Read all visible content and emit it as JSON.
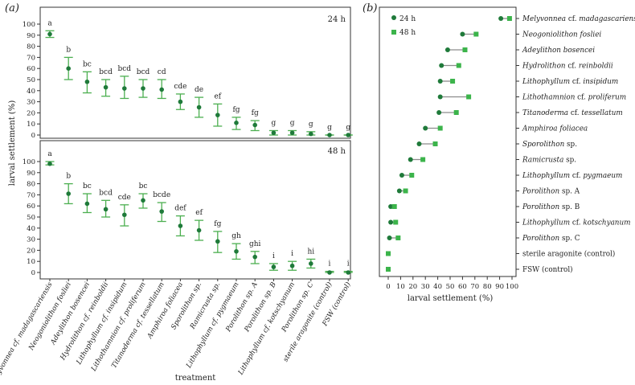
{
  "colors": {
    "dark": "#1f7a3a",
    "light": "#3cb44b",
    "errbar": "#4caf50",
    "axis": "#333333",
    "connector": "#8c8c8c"
  },
  "panel_a": {
    "label": "(a)",
    "ylabel": "larval settlement (%)",
    "xlabel": "treatment",
    "yticks": [
      0,
      10,
      20,
      30,
      40,
      50,
      60,
      70,
      80,
      90,
      100
    ],
    "categories": [
      "Melyvonnea cf. madagascariensis",
      "Neogoniolithon fosliei",
      "Adeylithon bosencei",
      "Hydrolithon cf. reinboldii",
      "Lithophyllum cf. insipidum",
      "Lithothamnion cf. proliferum",
      "Titanoderma cf. tessellatum",
      "Amphiroa foliacea",
      "Sporolithon sp.",
      "Ramicrusta sp.",
      "Lithophyllum cf. pygmaeum",
      "Porolithon sp. A",
      "Porolithon sp. B",
      "Lithophyllum cf. kotschyanum",
      "Porolithon sp. C",
      "sterile aragonite (control)",
      "FSW (control)"
    ]
  },
  "panel_b": {
    "label": "(b)",
    "xlabel": "larval settlement (%)",
    "xticks": [
      0,
      10,
      20,
      30,
      40,
      50,
      60,
      70,
      80,
      90,
      100
    ],
    "legend": [
      {
        "label": "24 h",
        "shape": "circle",
        "color": "#1f7a3a"
      },
      {
        "label": "48 h",
        "shape": "square",
        "color": "#3cb44b"
      }
    ]
  },
  "chart_data": [
    {
      "type": "scatter",
      "panel": "(a) top",
      "title": "24 h",
      "xlabel": "treatment",
      "ylabel": "larval settlement (%)",
      "ylim": [
        -5,
        105
      ],
      "series": [
        {
          "name": "24 h",
          "means": [
            91,
            60,
            48,
            43,
            42,
            42,
            41,
            30,
            25,
            18,
            11,
            9,
            2,
            2,
            1,
            0,
            0
          ],
          "err_low": [
            88,
            50,
            38,
            35,
            33,
            34,
            33,
            23,
            16,
            8,
            5,
            4,
            0,
            0,
            0,
            0,
            0
          ],
          "err_high": [
            94,
            70,
            57,
            50,
            53,
            50,
            50,
            37,
            34,
            28,
            16,
            13,
            4,
            4,
            3,
            0,
            0
          ],
          "letters": [
            "a",
            "b",
            "bc",
            "bcd",
            "bcd",
            "bcd",
            "cd",
            "cde",
            "de",
            "ef",
            "fg",
            "fg",
            "g",
            "g",
            "g",
            "g",
            "g"
          ]
        }
      ]
    },
    {
      "type": "scatter",
      "panel": "(a) bottom",
      "title": "48 h",
      "xlabel": "treatment",
      "ylabel": "larval settlement (%)",
      "ylim": [
        -5,
        105
      ],
      "series": [
        {
          "name": "48 h",
          "means": [
            98,
            71,
            62,
            57,
            52,
            65,
            55,
            42,
            38,
            28,
            19,
            14,
            5,
            6,
            8,
            0,
            0
          ],
          "err_low": [
            97,
            62,
            54,
            50,
            42,
            58,
            46,
            33,
            29,
            18,
            12,
            8,
            2,
            2,
            4,
            0,
            0
          ],
          "err_high": [
            100,
            80,
            71,
            65,
            61,
            71,
            63,
            51,
            47,
            37,
            26,
            19,
            8,
            10,
            12,
            1,
            1
          ],
          "letters": [
            "a",
            "b",
            "bc",
            "bcd",
            "cde",
            "bc",
            "bcde",
            "def",
            "ef",
            "fg",
            "gh",
            "ghi",
            "i",
            "i",
            "hi",
            "i",
            "i"
          ]
        }
      ]
    },
    {
      "type": "scatter",
      "panel": "(b)",
      "xlabel": "larval settlement (%)",
      "xlim": [
        -3,
        103
      ],
      "categories": [
        "Melyvonnea cf. madagascariensis",
        "Neogoniolithon fosliei",
        "Adeylithon bosencei",
        "Hydrolithon cf. reinboldii",
        "Lithophyllum cf. insipidum",
        "Lithothamnion cf. proliferum",
        "Titanoderma cf. tessellatum",
        "Amphiroa foliacea",
        "Sporolithon sp.",
        "Ramicrusta sp.",
        "Lithophyllum cf. pygmaeum",
        "Porolithon sp. A",
        "Porolithon sp. B",
        "Lithophyllum cf. kotschyanum",
        "Porolithon sp. C",
        "sterile aragonite (control)",
        "FSW (control)"
      ],
      "series": [
        {
          "name": "24 h",
          "values": [
            91,
            60,
            48,
            43,
            42,
            42,
            41,
            30,
            25,
            18,
            11,
            9,
            2,
            2,
            1,
            null,
            null
          ]
        },
        {
          "name": "48 h",
          "values": [
            98,
            71,
            62,
            57,
            52,
            65,
            55,
            42,
            38,
            28,
            19,
            14,
            5,
            6,
            8,
            0,
            0
          ]
        }
      ]
    }
  ]
}
